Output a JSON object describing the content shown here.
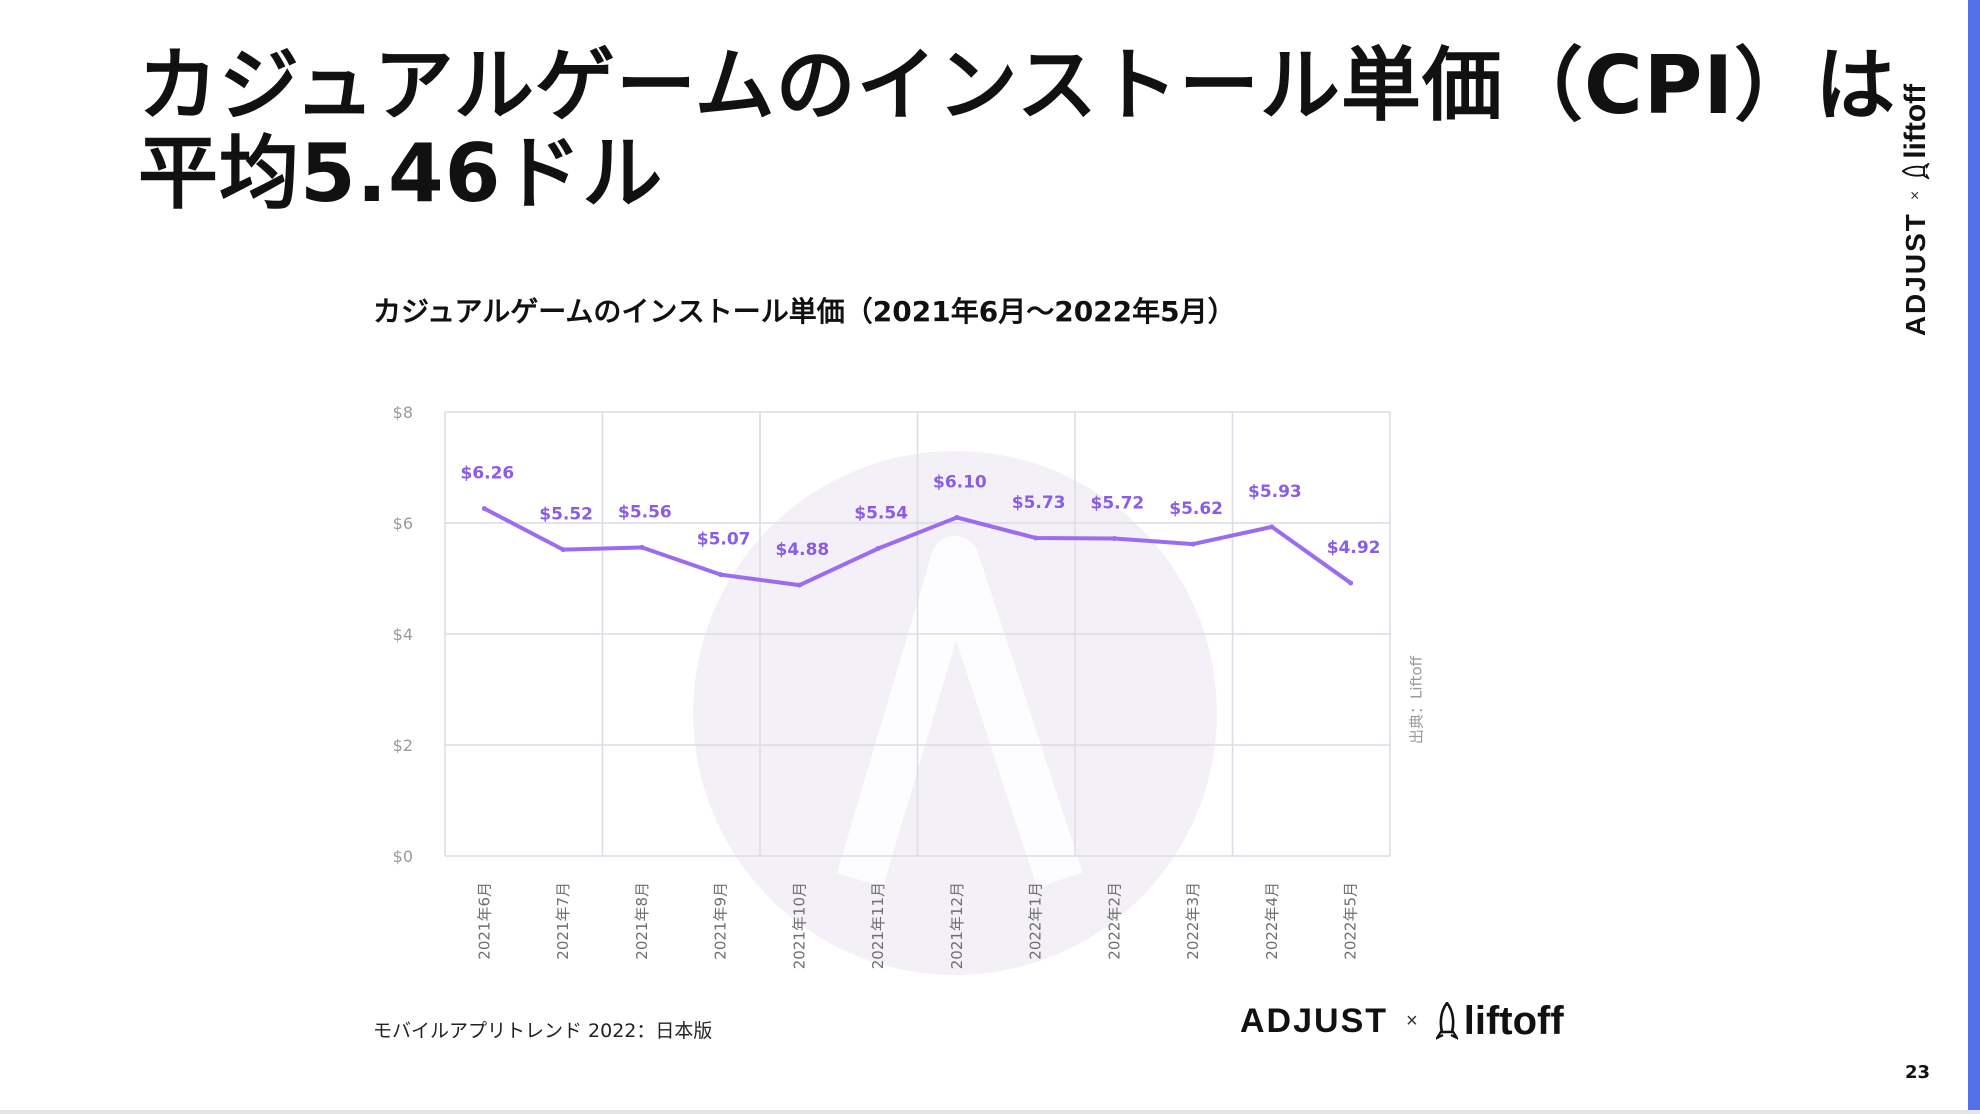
{
  "slide": {
    "title_lines": [
      "カジュアルゲームのインストール単価（CPI）は",
      "平均5.46ドル"
    ],
    "page_number": "23"
  },
  "colors": {
    "line": "#9b6cf0",
    "data_label": "#8a5ce8",
    "grid": "#dcdce6",
    "watermark": "#f3f1f7",
    "accent_border": "#5470e8"
  },
  "chart_data": {
    "type": "line",
    "title": "カジュアルゲームのインストール単価（2021年6月〜2022年5月）",
    "categories": [
      "2021年6月",
      "2021年7月",
      "2021年8月",
      "2021年9月",
      "2021年10月",
      "2021年11月",
      "2021年12月",
      "2022年1月",
      "2022年2月",
      "2022年3月",
      "2022年4月",
      "2022年5月"
    ],
    "values": [
      6.26,
      5.52,
      5.56,
      5.07,
      4.88,
      5.54,
      6.1,
      5.73,
      5.72,
      5.62,
      5.93,
      4.92
    ],
    "data_labels": [
      "$6.26",
      "$5.52",
      "$5.56",
      "$5.07",
      "$4.88",
      "$5.54",
      "$6.10",
      "$5.73",
      "$5.72",
      "$5.62",
      "$5.93",
      "$4.92"
    ],
    "y_ticks": [
      "$0",
      "$2",
      "$4",
      "$6",
      "$8"
    ],
    "ylim": [
      0,
      8
    ],
    "grid": true,
    "source_note": "出典：Liftoff"
  },
  "footer": {
    "publication": "モバイルアプリトレンド 2022：日本版",
    "logo_adjust": "ADJUST",
    "logo_times": "×",
    "logo_liftoff": "liftoff"
  }
}
